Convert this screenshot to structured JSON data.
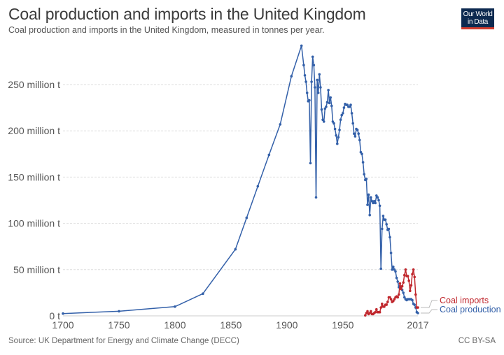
{
  "header": {
    "title": "Coal production and imports in the United Kingdom",
    "subtitle": "Coal production and imports in the United Kingdom, measured in tonnes per year.",
    "logo_line1": "Our World",
    "logo_line2": "in Data"
  },
  "footer": {
    "source": "Source: UK Department for Energy and Climate Change (DECC)",
    "license": "CC BY-SA"
  },
  "colors": {
    "production": "#3360a9",
    "imports": "#c0272d",
    "grid": "#dddddd",
    "logo_bg": "#0d2a50",
    "logo_accent": "#d23d2e"
  },
  "chart_data": {
    "type": "line",
    "title": "Coal production and imports in the United Kingdom",
    "subtitle": "Coal production and imports in the United Kingdom, measured in tonnes per year.",
    "xlabel": "",
    "ylabel": "",
    "xlim": [
      1700,
      2017
    ],
    "ylim": [
      0,
      290
    ],
    "x_ticks": [
      {
        "value": 1700,
        "label": "1700"
      },
      {
        "value": 1750,
        "label": "1750"
      },
      {
        "value": 1800,
        "label": "1800"
      },
      {
        "value": 1850,
        "label": "1850"
      },
      {
        "value": 1900,
        "label": "1900"
      },
      {
        "value": 1950,
        "label": "1950"
      },
      {
        "value": 2017,
        "label": "2017"
      }
    ],
    "y_ticks": [
      {
        "value": 0,
        "label": "0 t"
      },
      {
        "value": 50,
        "label": "50 million t"
      },
      {
        "value": 100,
        "label": "100 million t"
      },
      {
        "value": 150,
        "label": "150 million t"
      },
      {
        "value": 200,
        "label": "200 million t"
      },
      {
        "value": 250,
        "label": "250 million t"
      }
    ],
    "grid": true,
    "legend": "right-end-labels",
    "units": "million tonnes",
    "series": [
      {
        "name": "Coal production",
        "color": "#3360a9",
        "points": [
          [
            1700,
            2.5
          ],
          [
            1750,
            5
          ],
          [
            1800,
            10
          ],
          [
            1825,
            24
          ],
          [
            1854,
            72
          ],
          [
            1864,
            106
          ],
          [
            1874,
            140
          ],
          [
            1884,
            174
          ],
          [
            1894,
            207
          ],
          [
            1904,
            259
          ],
          [
            1913,
            292
          ],
          [
            1915,
            271
          ],
          [
            1916,
            260
          ],
          [
            1917,
            253
          ],
          [
            1918,
            241
          ],
          [
            1919,
            232
          ],
          [
            1920,
            233
          ],
          [
            1921,
            165
          ],
          [
            1922,
            253
          ],
          [
            1923,
            280
          ],
          [
            1924,
            271
          ],
          [
            1925,
            247
          ],
          [
            1926,
            128
          ],
          [
            1927,
            255
          ],
          [
            1928,
            241
          ],
          [
            1929,
            261
          ],
          [
            1930,
            247
          ],
          [
            1931,
            223
          ],
          [
            1932,
            212
          ],
          [
            1933,
            210
          ],
          [
            1934,
            224
          ],
          [
            1935,
            226
          ],
          [
            1936,
            231
          ],
          [
            1937,
            244
          ],
          [
            1938,
            230
          ],
          [
            1939,
            236
          ],
          [
            1940,
            227
          ],
          [
            1941,
            210
          ],
          [
            1942,
            208
          ],
          [
            1943,
            202
          ],
          [
            1944,
            195
          ],
          [
            1945,
            186
          ],
          [
            1946,
            193
          ],
          [
            1947,
            201
          ],
          [
            1948,
            212
          ],
          [
            1949,
            217
          ],
          [
            1950,
            219
          ],
          [
            1951,
            225
          ],
          [
            1952,
            229
          ],
          [
            1953,
            228
          ],
          [
            1954,
            228
          ],
          [
            1955,
            226
          ],
          [
            1956,
            226
          ],
          [
            1957,
            228
          ],
          [
            1958,
            219
          ],
          [
            1959,
            208
          ],
          [
            1960,
            197
          ],
          [
            1961,
            194
          ],
          [
            1962,
            202
          ],
          [
            1963,
            201
          ],
          [
            1964,
            197
          ],
          [
            1965,
            190
          ],
          [
            1966,
            177
          ],
          [
            1967,
            175
          ],
          [
            1968,
            166
          ],
          [
            1969,
            153
          ],
          [
            1970,
            147
          ],
          [
            1971,
            148
          ],
          [
            1972,
            120
          ],
          [
            1973,
            131
          ],
          [
            1974,
            109
          ],
          [
            1975,
            128
          ],
          [
            1976,
            124
          ],
          [
            1977,
            122
          ],
          [
            1978,
            124
          ],
          [
            1979,
            122
          ],
          [
            1980,
            130
          ],
          [
            1981,
            128
          ],
          [
            1982,
            125
          ],
          [
            1983,
            119
          ],
          [
            1984,
            51
          ],
          [
            1985,
            94
          ],
          [
            1986,
            108
          ],
          [
            1987,
            104
          ],
          [
            1988,
            104
          ],
          [
            1989,
            99
          ],
          [
            1990,
            93
          ],
          [
            1991,
            94
          ],
          [
            1992,
            85
          ],
          [
            1993,
            68
          ],
          [
            1994,
            50
          ],
          [
            1995,
            53
          ],
          [
            1996,
            50
          ],
          [
            1997,
            48
          ],
          [
            1998,
            41
          ],
          [
            1999,
            37
          ],
          [
            2000,
            31
          ],
          [
            2001,
            32
          ],
          [
            2002,
            30
          ],
          [
            2003,
            28
          ],
          [
            2004,
            25
          ],
          [
            2005,
            20
          ],
          [
            2006,
            18
          ],
          [
            2007,
            17
          ],
          [
            2008,
            18
          ],
          [
            2009,
            18
          ],
          [
            2010,
            18
          ],
          [
            2011,
            18
          ],
          [
            2012,
            17
          ],
          [
            2013,
            13
          ],
          [
            2014,
            12
          ],
          [
            2015,
            9
          ],
          [
            2016,
            4
          ],
          [
            2017,
            3
          ]
        ]
      },
      {
        "name": "Coal imports",
        "color": "#c0272d",
        "points": [
          [
            1970,
            0.5
          ],
          [
            1971,
            3
          ],
          [
            1972,
            5
          ],
          [
            1973,
            2
          ],
          [
            1974,
            3
          ],
          [
            1975,
            5
          ],
          [
            1976,
            2
          ],
          [
            1977,
            2
          ],
          [
            1978,
            3
          ],
          [
            1979,
            4
          ],
          [
            1980,
            7
          ],
          [
            1981,
            4
          ],
          [
            1982,
            4
          ],
          [
            1983,
            4
          ],
          [
            1984,
            9
          ],
          [
            1985,
            13
          ],
          [
            1986,
            10
          ],
          [
            1987,
            10
          ],
          [
            1988,
            12
          ],
          [
            1989,
            12
          ],
          [
            1990,
            15
          ],
          [
            1991,
            20
          ],
          [
            1992,
            20
          ],
          [
            1993,
            18
          ],
          [
            1994,
            15
          ],
          [
            1995,
            16
          ],
          [
            1996,
            18
          ],
          [
            1997,
            20
          ],
          [
            1998,
            21
          ],
          [
            1999,
            20
          ],
          [
            2000,
            23
          ],
          [
            2001,
            35
          ],
          [
            2002,
            29
          ],
          [
            2003,
            32
          ],
          [
            2004,
            36
          ],
          [
            2005,
            44
          ],
          [
            2006,
            50
          ],
          [
            2007,
            43
          ],
          [
            2008,
            43
          ],
          [
            2009,
            38
          ],
          [
            2010,
            27
          ],
          [
            2011,
            33
          ],
          [
            2012,
            45
          ],
          [
            2013,
            50
          ],
          [
            2014,
            42
          ],
          [
            2015,
            23
          ],
          [
            2016,
            9
          ],
          [
            2017,
            9
          ]
        ]
      }
    ]
  }
}
